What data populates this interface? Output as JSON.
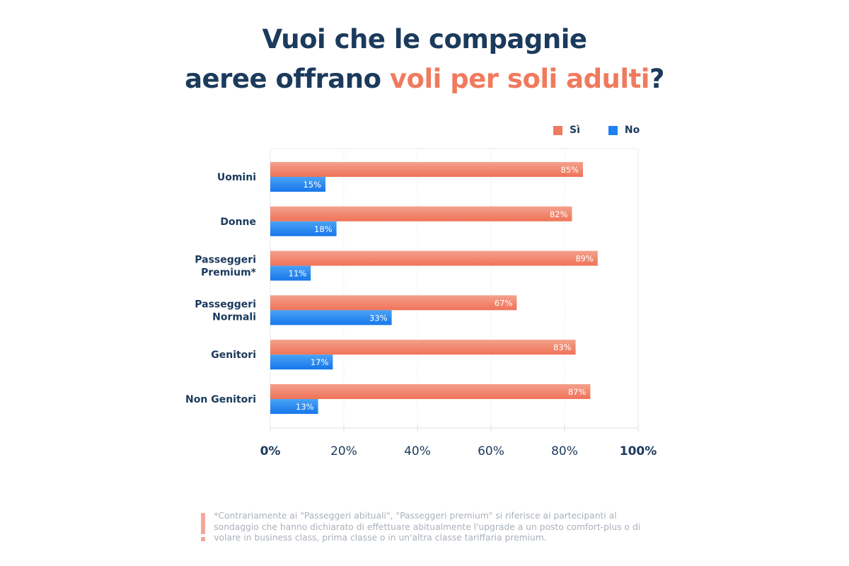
{
  "title": {
    "line1": "Vuoi che le compagnie",
    "line2_prefix": "aeree offrano ",
    "line2_highlight": "voli per soli adulti",
    "line2_suffix": "?"
  },
  "colors": {
    "si": "#f07a5e",
    "no": "#1e82f0",
    "text": "#1b3a5c",
    "highlight": "#f07a5e"
  },
  "chart_data": {
    "type": "bar",
    "orientation": "horizontal",
    "title": "Vuoi che le compagnie aeree offrano voli per soli adulti?",
    "categories": [
      "Uomini",
      "Donne",
      "Passeggeri Premium*",
      "Passeggeri Normali",
      "Genitori",
      "Non Genitori"
    ],
    "category_lines": [
      [
        "Uomini"
      ],
      [
        "Donne"
      ],
      [
        "Passeggeri",
        "Premium*"
      ],
      [
        "Passeggeri",
        "Normali"
      ],
      [
        "Genitori"
      ],
      [
        "Non Genitori"
      ]
    ],
    "series": [
      {
        "name": "Sì",
        "values": [
          85,
          82,
          89,
          67,
          83,
          87
        ],
        "labels": [
          "85%",
          "82%",
          "89%",
          "67%",
          "83%",
          "87%"
        ]
      },
      {
        "name": "No",
        "values": [
          15,
          18,
          11,
          33,
          17,
          13
        ],
        "labels": [
          "15%",
          "18%",
          "11%",
          "33%",
          "17%",
          "13%"
        ]
      }
    ],
    "xlim": [
      0,
      100
    ],
    "xticks": [
      0,
      20,
      40,
      60,
      80,
      100
    ],
    "xtick_labels": [
      "0%",
      "20%",
      "40%",
      "60%",
      "80%",
      "100%"
    ],
    "xlabel": "",
    "ylabel": "",
    "grid": true,
    "legend_position": "top-right"
  },
  "legend": [
    {
      "label": "Sì"
    },
    {
      "label": "No"
    }
  ],
  "footnote": "*Contrariamente ai \"Passeggeri abituali\", \"Passeggeri premium\" si riferisce ai partecipanti al sondaggio che hanno dichiarato di effettuare abitualmente l'upgrade a un posto comfort-plus o di volare in business class, prima classe o in un'altra classe tariffaria premium."
}
